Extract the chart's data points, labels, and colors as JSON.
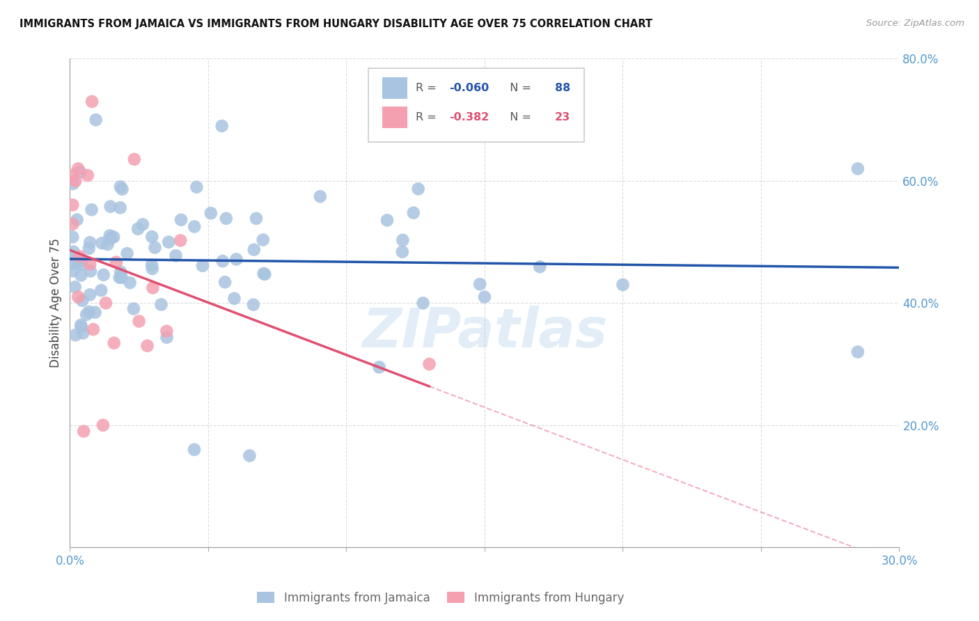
{
  "title": "IMMIGRANTS FROM JAMAICA VS IMMIGRANTS FROM HUNGARY DISABILITY AGE OVER 75 CORRELATION CHART",
  "source": "Source: ZipAtlas.com",
  "ylabel_label": "Disability Age Over 75",
  "x_min": 0.0,
  "x_max": 0.3,
  "y_min": 0.0,
  "y_max": 0.8,
  "jamaica_R": -0.06,
  "jamaica_N": 88,
  "hungary_R": -0.382,
  "hungary_N": 23,
  "jamaica_color": "#a8c4e0",
  "hungary_color": "#f4a0b0",
  "jamaica_line_color": "#2255aa",
  "hungary_line_color": "#e05070",
  "watermark": "ZIPatlas",
  "legend_jamaica_label": "Immigrants from Jamaica",
  "legend_hungary_label": "Immigrants from Hungary",
  "background_color": "#ffffff",
  "grid_color": "#cccccc",
  "jamaica_seed": 42,
  "hungary_seed": 17
}
